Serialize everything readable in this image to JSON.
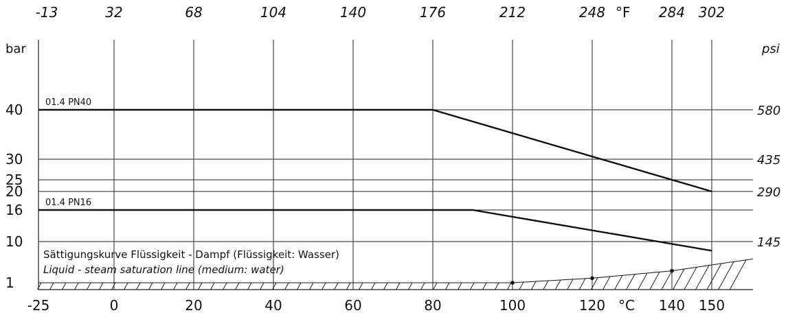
{
  "chart_data": {
    "type": "line",
    "title": "",
    "x_axis": {
      "unit_label": "°C",
      "range": [
        -25,
        160
      ],
      "ticks": [
        -25,
        0,
        20,
        40,
        60,
        80,
        100,
        120,
        140,
        150
      ],
      "tick_labels": [
        "-25",
        "0",
        "20",
        "40",
        "60",
        "80",
        "100",
        "120",
        "140",
        "150"
      ],
      "grid": true
    },
    "x_axis_secondary": {
      "unit_label": "°F",
      "ticks": [
        "-13",
        "32",
        "68",
        "104",
        "140",
        "176",
        "212",
        "248",
        "284",
        "302"
      ],
      "ticks_at_celsius": [
        -25,
        0,
        20,
        40,
        60,
        80,
        100,
        120,
        140,
        150
      ]
    },
    "y_axis": {
      "unit_label": "bar",
      "range": [
        0,
        46
      ],
      "ticks": [
        1,
        10,
        16,
        20,
        25,
        30,
        40
      ],
      "tick_labels": [
        "1",
        "10",
        "16",
        "20",
        "25",
        "30",
        "40"
      ],
      "grid": true
    },
    "y_axis_secondary": {
      "unit_label": "psi",
      "tick_labels": [
        "145",
        "290",
        "435",
        "580"
      ],
      "ticks_at_bar": [
        10,
        20,
        30,
        40
      ]
    },
    "series": [
      {
        "name": "01.4 PN40",
        "x": [
          -25,
          80,
          150
        ],
        "y": [
          40,
          40,
          20
        ]
      },
      {
        "name": "01.4 PN16",
        "x": [
          -25,
          90,
          150
        ],
        "y": [
          16,
          16,
          8
        ]
      }
    ],
    "saturation_curve": {
      "x": [
        100,
        120,
        140,
        160
      ],
      "y": [
        1,
        2,
        3.6,
        6.2
      ],
      "marked_points": [
        [
          100,
          1
        ],
        [
          120,
          2
        ],
        [
          140,
          3.6
        ]
      ]
    },
    "annotation": {
      "de": "Sättigungskurve Flüssigkeit - Dampf (Flüssigkeit: Wasser)",
      "en": "Liquid - steam saturation line (medium: water)"
    },
    "colors": {
      "line": "#111111",
      "grid": "#222222"
    }
  }
}
